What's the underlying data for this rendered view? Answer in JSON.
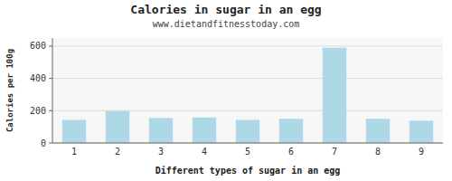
{
  "chart_data": {
    "type": "bar",
    "title": "Calories in sugar in an egg",
    "subtitle": "www.dietandfitnesstoday.com",
    "xlabel": "Different types of sugar in an egg",
    "ylabel": "Calories per 100g",
    "categories": [
      1,
      2,
      3,
      4,
      5,
      6,
      7,
      8,
      9
    ],
    "values": [
      143,
      198,
      155,
      158,
      143,
      150,
      590,
      150,
      138
    ],
    "color": "#add8e6",
    "ylim": [
      0,
      650
    ],
    "yticks": [
      0,
      200,
      400,
      600
    ],
    "grid": true
  }
}
